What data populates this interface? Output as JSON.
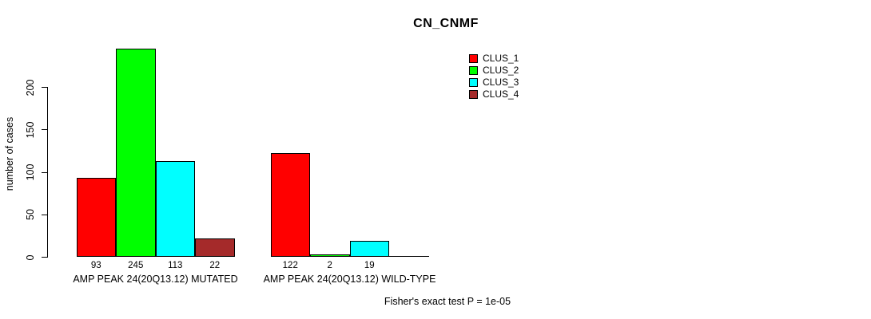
{
  "chart_data": {
    "type": "bar",
    "title": "CN_CNMF",
    "ylabel": "number of cases",
    "ylim": [
      0,
      200
    ],
    "yticks": [
      0,
      50,
      100,
      150,
      200
    ],
    "grid": false,
    "legend_position": "top-right",
    "categories": [
      "AMP PEAK 24(20Q13.12) MUTATED",
      "AMP PEAK 24(20Q13.12) WILD-TYPE"
    ],
    "series": [
      {
        "name": "CLUS_1",
        "color": "#FF0000",
        "values": [
          93,
          122
        ]
      },
      {
        "name": "CLUS_2",
        "color": "#00FF00",
        "values": [
          245,
          2
        ]
      },
      {
        "name": "CLUS_3",
        "color": "#00FFFF",
        "values": [
          113,
          19
        ]
      },
      {
        "name": "CLUS_4",
        "color": "#A52A2A",
        "values": [
          22,
          0
        ]
      }
    ],
    "annotation": "Fisher's exact test P = 1e-05"
  }
}
